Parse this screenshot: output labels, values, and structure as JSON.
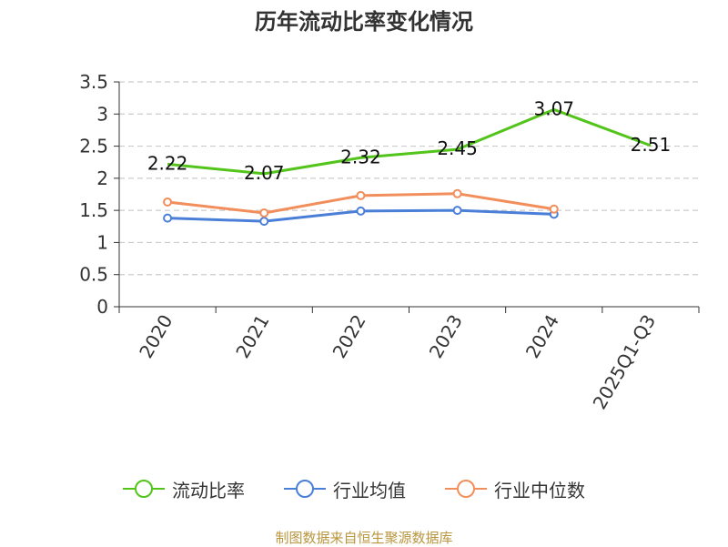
{
  "title": "历年流动比率变化情况",
  "source": "制图数据来自恒生聚源数据库",
  "chart_data": {
    "type": "line",
    "categories": [
      "2020",
      "2021",
      "2022",
      "2023",
      "2024",
      "2025Q1-Q3"
    ],
    "ylim": [
      0,
      3.5
    ],
    "yticks": [
      "0",
      "0.5",
      "1",
      "1.5",
      "2",
      "2.5",
      "3",
      "3.5"
    ],
    "grid": true,
    "legend_position": "bottom",
    "series": [
      {
        "name": "流动比率",
        "color": "#52c41a",
        "values": [
          2.22,
          2.07,
          2.32,
          2.45,
          3.07,
          2.51
        ],
        "labels": [
          "2.22",
          "2.07",
          "2.32",
          "2.45",
          "3.07",
          "2.51"
        ],
        "show_labels": true
      },
      {
        "name": "行业均值",
        "color": "#4a7fd8",
        "values": [
          1.38,
          1.33,
          1.49,
          1.5,
          1.44,
          null
        ],
        "show_labels": false
      },
      {
        "name": "行业中位数",
        "color": "#f28e5b",
        "values": [
          1.63,
          1.46,
          1.73,
          1.76,
          1.52,
          null
        ],
        "show_labels": false
      }
    ]
  }
}
